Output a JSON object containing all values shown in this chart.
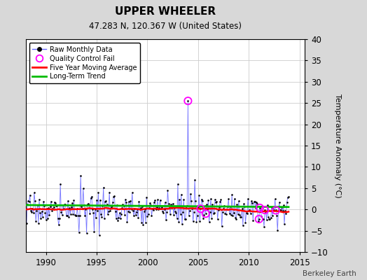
{
  "title": "UPPER WHEELER",
  "subtitle": "47.283 N, 120.367 W (United States)",
  "ylabel": "Temperature Anomaly (°C)",
  "watermark": "Berkeley Earth",
  "xlim": [
    1988.0,
    2015.5
  ],
  "ylim": [
    -10,
    40
  ],
  "yticks": [
    -10,
    -5,
    0,
    5,
    10,
    15,
    20,
    25,
    30,
    35,
    40
  ],
  "xticks": [
    1990,
    1995,
    2000,
    2005,
    2010,
    2015
  ],
  "bg_color": "#d8d8d8",
  "plot_bg_color": "#ffffff",
  "raw_color": "#6666ff",
  "raw_dot_color": "#000000",
  "moving_avg_color": "#ff0000",
  "trend_color": "#00bb00",
  "qc_fail_color": "#ff00ff",
  "grid_color": "#cccccc",
  "start_year": 1988,
  "start_month": 1,
  "n_months": 312,
  "seed": 17,
  "spike_month_idx": 192,
  "spike_value": 25.5,
  "qc_fail_indices": [
    192,
    207,
    213,
    276,
    277,
    283,
    296
  ],
  "legend_entries": [
    "Raw Monthly Data",
    "Quality Control Fail",
    "Five Year Moving Average",
    "Long-Term Trend"
  ]
}
